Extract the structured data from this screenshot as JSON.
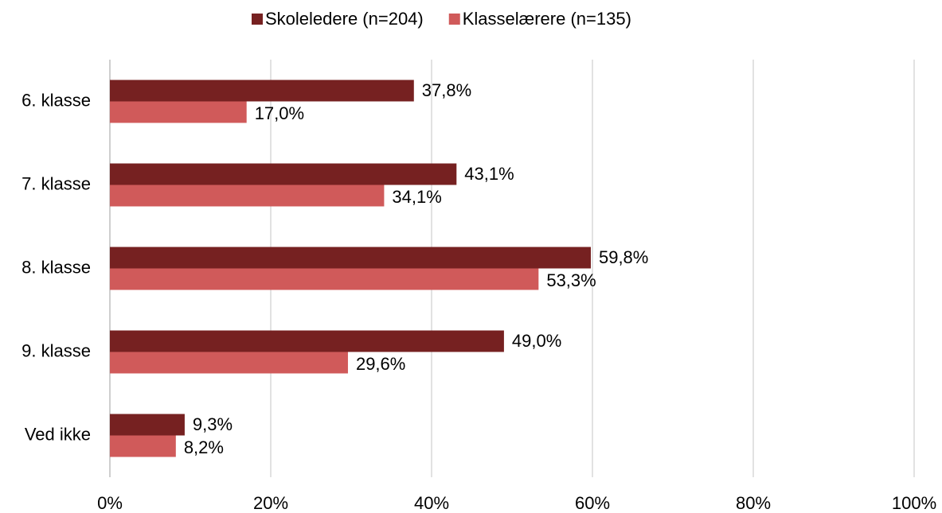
{
  "chart_data": {
    "type": "bar",
    "orientation": "horizontal",
    "categories": [
      "6. klasse",
      "7. klasse",
      "8. klasse",
      "9. klasse",
      "Ved ikke"
    ],
    "series": [
      {
        "name": "Skoleledere (n=204)",
        "color": "#762121",
        "values": [
          37.8,
          43.1,
          59.8,
          49.0,
          9.3
        ],
        "value_labels": [
          "37,8%",
          "43,1%",
          "59,8%",
          "49,0%",
          "9,3%"
        ]
      },
      {
        "name": "Klasselærere (n=135)",
        "color": "#d05a5a",
        "values": [
          17.0,
          34.1,
          53.3,
          29.6,
          8.2
        ],
        "value_labels": [
          "17,0%",
          "34,1%",
          "53,3%",
          "29,6%",
          "8,2%"
        ]
      }
    ],
    "xlim": [
      0,
      100
    ],
    "xticks": [
      {
        "value": 0,
        "label": "0%"
      },
      {
        "value": 20,
        "label": "20%"
      },
      {
        "value": 40,
        "label": "40%"
      },
      {
        "value": 60,
        "label": "60%"
      },
      {
        "value": 80,
        "label": "80%"
      },
      {
        "value": 100,
        "label": "100%"
      }
    ],
    "grid": true,
    "legend": "top"
  }
}
